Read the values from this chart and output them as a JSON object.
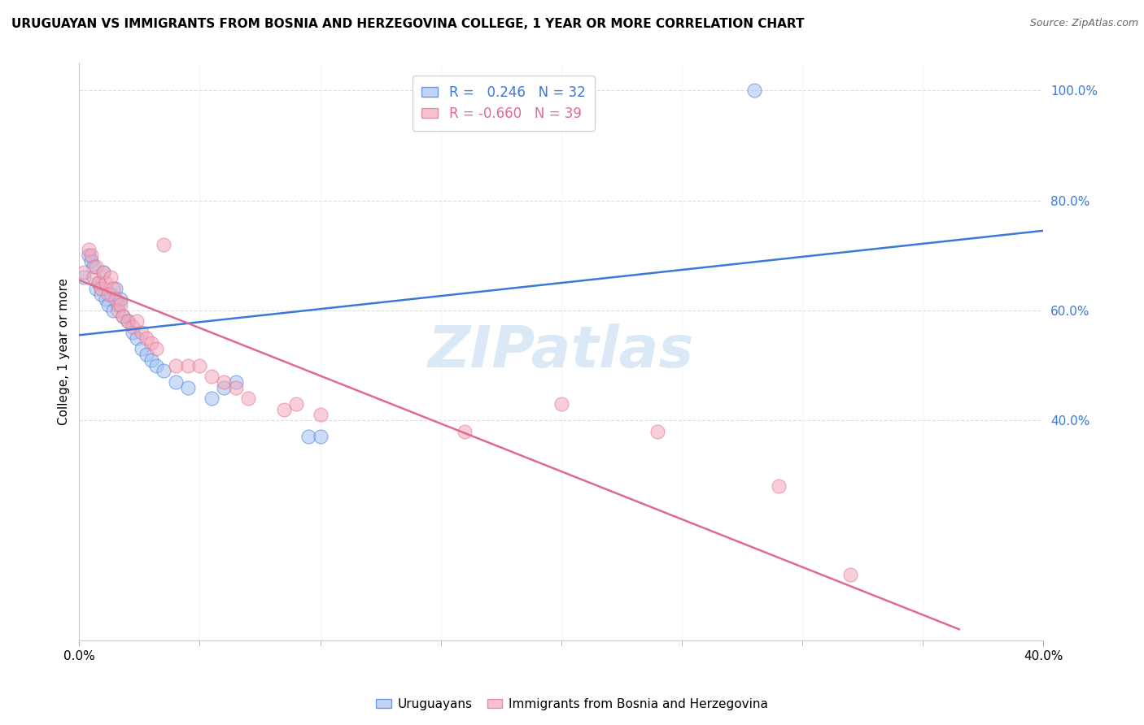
{
  "title": "URUGUAYAN VS IMMIGRANTS FROM BOSNIA AND HERZEGOVINA COLLEGE, 1 YEAR OR MORE CORRELATION CHART",
  "source": "Source: ZipAtlas.com",
  "ylabel": "College, 1 year or more",
  "xlim": [
    0.0,
    0.4
  ],
  "ylim": [
    0.0,
    1.05
  ],
  "ytick_vals": [
    0.4,
    0.6,
    0.8,
    1.0
  ],
  "ytick_labels": [
    "40.0%",
    "60.0%",
    "80.0%",
    "100.0%"
  ],
  "xtick_vals": [
    0.0,
    0.4
  ],
  "xtick_labels": [
    "0.0%",
    "40.0%"
  ],
  "minor_xticks": [
    0.05,
    0.1,
    0.15,
    0.2,
    0.25,
    0.3,
    0.35
  ],
  "legend_blue_r": "0.246",
  "legend_blue_n": "32",
  "legend_pink_r": "-0.660",
  "legend_pink_n": "39",
  "blue_color": "#a4c2f4",
  "pink_color": "#f4a7b9",
  "line_blue": "#3c78d8",
  "line_pink": "#e06b8b",
  "watermark": "ZIPatlas",
  "blue_scatter_x": [
    0.002,
    0.004,
    0.005,
    0.006,
    0.007,
    0.008,
    0.009,
    0.01,
    0.011,
    0.012,
    0.013,
    0.014,
    0.015,
    0.016,
    0.017,
    0.018,
    0.02,
    0.022,
    0.024,
    0.026,
    0.028,
    0.03,
    0.032,
    0.035,
    0.04,
    0.045,
    0.055,
    0.06,
    0.065,
    0.095,
    0.1,
    0.28
  ],
  "blue_scatter_y": [
    0.66,
    0.7,
    0.69,
    0.68,
    0.64,
    0.65,
    0.63,
    0.67,
    0.62,
    0.61,
    0.63,
    0.6,
    0.64,
    0.61,
    0.62,
    0.59,
    0.58,
    0.56,
    0.55,
    0.53,
    0.52,
    0.51,
    0.5,
    0.49,
    0.47,
    0.46,
    0.44,
    0.46,
    0.47,
    0.37,
    0.37,
    1.0
  ],
  "pink_scatter_x": [
    0.002,
    0.004,
    0.005,
    0.006,
    0.007,
    0.008,
    0.009,
    0.01,
    0.011,
    0.012,
    0.013,
    0.014,
    0.015,
    0.016,
    0.017,
    0.018,
    0.02,
    0.022,
    0.024,
    0.026,
    0.028,
    0.03,
    0.032,
    0.035,
    0.04,
    0.045,
    0.05,
    0.055,
    0.06,
    0.065,
    0.07,
    0.085,
    0.09,
    0.1,
    0.16,
    0.2,
    0.24,
    0.29,
    0.32
  ],
  "pink_scatter_y": [
    0.67,
    0.71,
    0.7,
    0.66,
    0.68,
    0.65,
    0.64,
    0.67,
    0.65,
    0.63,
    0.66,
    0.64,
    0.62,
    0.6,
    0.61,
    0.59,
    0.58,
    0.57,
    0.58,
    0.56,
    0.55,
    0.54,
    0.53,
    0.72,
    0.5,
    0.5,
    0.5,
    0.48,
    0.47,
    0.46,
    0.44,
    0.42,
    0.43,
    0.41,
    0.38,
    0.43,
    0.38,
    0.28,
    0.12
  ],
  "blue_line_x": [
    0.0,
    0.4
  ],
  "blue_line_y": [
    0.555,
    0.745
  ],
  "pink_line_x": [
    0.0,
    0.365
  ],
  "pink_line_y": [
    0.655,
    0.02
  ],
  "grid_color": "#dddddd",
  "spine_color": "#cccccc"
}
